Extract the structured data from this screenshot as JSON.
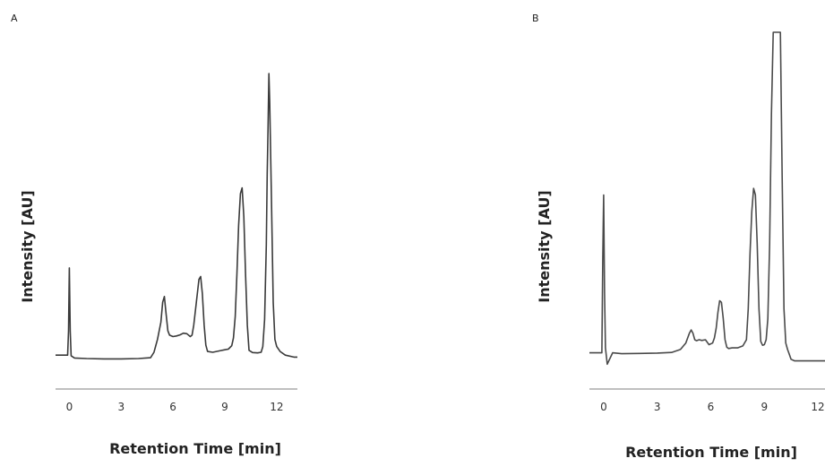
{
  "chart_data": [
    {
      "type": "line",
      "panel_label": "A",
      "title": "",
      "xlabel": "Retention Time [min]",
      "ylabel": "Intensity [AU]",
      "xticks": [
        0,
        3,
        6,
        9,
        12
      ],
      "xlim": [
        -0.8,
        13.2
      ],
      "ylim": [
        0,
        100
      ],
      "series": [
        {
          "x": [
            -0.8,
            -0.1,
            -0.05,
            0.0,
            0.05,
            0.1,
            0.3,
            1.0,
            2.0,
            3.0,
            4.0,
            4.7,
            4.9,
            5.1,
            5.3,
            5.4,
            5.5,
            5.6,
            5.7,
            5.8,
            6.0,
            6.2,
            6.4,
            6.6,
            6.8,
            7.0,
            7.1,
            7.2,
            7.35,
            7.5,
            7.6,
            7.7,
            7.8,
            7.9,
            8.0,
            8.3,
            8.7,
            9.0,
            9.2,
            9.4,
            9.5,
            9.6,
            9.7,
            9.8,
            9.9,
            10.0,
            10.1,
            10.2,
            10.3,
            10.4,
            10.6,
            10.9,
            11.1,
            11.2,
            11.3,
            11.4,
            11.45,
            11.5,
            11.55,
            11.6,
            11.7,
            11.8,
            11.9,
            12.0,
            12.2,
            12.5,
            13.0,
            13.2
          ],
          "y": [
            1.5,
            1.5,
            10,
            32,
            10,
            1.3,
            0.5,
            0.3,
            0.2,
            0.2,
            0.3,
            0.6,
            2.5,
            7,
            13,
            20,
            22,
            16,
            10,
            8.5,
            8.0,
            8.2,
            8.6,
            9.2,
            9.0,
            8.0,
            8.5,
            12,
            20,
            28,
            29,
            23,
            12,
            5,
            2.8,
            2.5,
            3.0,
            3.4,
            3.6,
            4.8,
            7.5,
            15,
            30,
            47,
            58,
            60,
            50,
            30,
            12,
            3.2,
            2.4,
            2.3,
            2.5,
            4.5,
            14,
            40,
            65,
            80,
            100,
            90,
            55,
            20,
            7.0,
            4.5,
            2.8,
            1.5,
            0.8,
            0.8
          ]
        }
      ]
    },
    {
      "type": "line",
      "panel_label": "B",
      "title": "",
      "xlabel": "Retention Time [min]",
      "ylabel": "Intensity [AU]",
      "xticks": [
        0,
        3,
        6,
        9,
        12
      ],
      "xlim": [
        -0.8,
        12.4
      ],
      "ylim": [
        0,
        100
      ],
      "series": [
        {
          "x": [
            -0.8,
            -0.1,
            -0.05,
            0.0,
            0.05,
            0.1,
            0.2,
            0.5,
            1.0,
            2.0,
            3.0,
            3.8,
            4.3,
            4.6,
            4.8,
            4.9,
            5.0,
            5.1,
            5.2,
            5.35,
            5.5,
            5.7,
            5.9,
            6.1,
            6.2,
            6.3,
            6.4,
            6.5,
            6.6,
            6.7,
            6.8,
            6.9,
            7.0,
            7.2,
            7.5,
            7.8,
            8.0,
            8.1,
            8.2,
            8.3,
            8.4,
            8.5,
            8.6,
            8.7,
            8.8,
            8.9,
            9.0,
            9.1,
            9.2,
            9.3,
            9.4,
            9.5,
            9.6,
            9.65,
            9.7,
            9.8,
            9.9,
            10.0,
            10.1,
            10.2,
            10.3,
            10.4,
            10.5,
            10.7,
            11.0,
            11.5,
            12.0,
            12.4
          ],
          "y": [
            1.5,
            1.5,
            30,
            50,
            20,
            3,
            -2,
            1.5,
            1.2,
            1.3,
            1.4,
            1.6,
            2.5,
            4.5,
            7.5,
            8.5,
            7.5,
            5.5,
            5.2,
            5.5,
            5.3,
            5.5,
            4.0,
            4.5,
            6,
            9,
            14,
            17.5,
            17,
            12,
            5.5,
            3.2,
            2.8,
            3.0,
            3.0,
            3.6,
            5.5,
            15,
            32,
            45,
            52,
            50,
            35,
            15,
            5.0,
            3.8,
            4.0,
            5.5,
            12,
            35,
            75,
            100,
            100,
            100,
            100,
            100,
            100,
            55,
            15,
            4.5,
            2.5,
            1.0,
            -0.5,
            -1.0,
            -1.0,
            -1.0,
            -1.0,
            -1.0
          ]
        }
      ]
    }
  ]
}
